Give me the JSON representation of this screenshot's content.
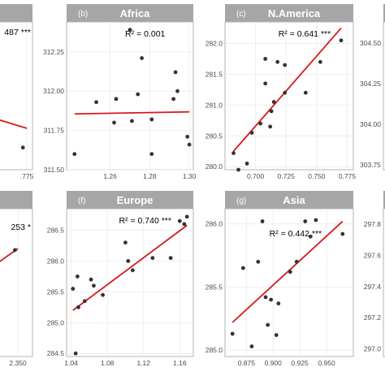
{
  "chart_data": [
    {
      "panel": "partial-top-left",
      "type": "scatter",
      "title": "",
      "annotation": "487 ***",
      "x_ticks": [
        ".775"
      ],
      "y_ticks": [],
      "xlim": [
        0.655,
        0.785
      ],
      "ylim": [
        0,
        1
      ],
      "points": [
        [
          0.72,
          0.8
        ],
        [
          0.72,
          0.7
        ],
        [
          0.768,
          0.15
        ]
      ],
      "fit_line": [
        [
          0.655,
          0.42
        ],
        [
          0.775,
          0.28
        ]
      ]
    },
    {
      "panel": "b",
      "type": "scatter",
      "title": "Africa",
      "tag": "(b)",
      "annotation": "R² = 0.001",
      "x_ticks": [
        "1.26",
        "1.28",
        "1.30"
      ],
      "y_ticks": [
        "312.25",
        "312.00",
        "311.75",
        "311.50"
      ],
      "xlim": [
        1.238,
        1.302
      ],
      "ylim": [
        311.5,
        312.44
      ],
      "points": [
        [
          1.242,
          311.6
        ],
        [
          1.253,
          311.93
        ],
        [
          1.263,
          311.95
        ],
        [
          1.262,
          311.8
        ],
        [
          1.27,
          312.39
        ],
        [
          1.274,
          311.98
        ],
        [
          1.276,
          312.21
        ],
        [
          1.271,
          311.81
        ],
        [
          1.281,
          311.82
        ],
        [
          1.281,
          311.6
        ],
        [
          1.293,
          312.12
        ],
        [
          1.292,
          311.95
        ],
        [
          1.294,
          312.0
        ],
        [
          1.299,
          311.71
        ],
        [
          1.3,
          311.66
        ]
      ],
      "fit_line": [
        [
          1.242,
          311.855
        ],
        [
          1.3,
          311.868
        ]
      ]
    },
    {
      "panel": "c",
      "type": "scatter",
      "title": "N.America",
      "tag": "(c)",
      "annotation": "R² = 0.641 ***",
      "x_ticks": [
        "0.700",
        "0.725",
        "0.750",
        "0.775"
      ],
      "y_ticks": [
        "282.0",
        "281.5",
        "281.0",
        "280.5",
        "280.0"
      ],
      "xlim": [
        0.675,
        0.78
      ],
      "ylim": [
        279.95,
        282.35
      ],
      "points": [
        [
          0.682,
          280.22
        ],
        [
          0.686,
          279.95
        ],
        [
          0.693,
          280.05
        ],
        [
          0.697,
          280.55
        ],
        [
          0.704,
          280.7
        ],
        [
          0.708,
          281.35
        ],
        [
          0.708,
          281.75
        ],
        [
          0.712,
          280.65
        ],
        [
          0.713,
          280.9
        ],
        [
          0.715,
          281.05
        ],
        [
          0.718,
          281.7
        ],
        [
          0.724,
          281.65
        ],
        [
          0.724,
          281.2
        ],
        [
          0.741,
          281.2
        ],
        [
          0.753,
          281.7
        ],
        [
          0.77,
          282.05
        ]
      ],
      "fit_line": [
        [
          0.682,
          280.25
        ],
        [
          0.77,
          282.25
        ]
      ]
    },
    {
      "panel": "partial-top-right",
      "type": "scatter",
      "title": "",
      "x_ticks": [],
      "y_ticks": [
        "304.50",
        "304.25",
        "304.00",
        "303.75"
      ],
      "ylim": [
        303.72,
        304.63
      ],
      "points": []
    },
    {
      "panel": "partial-bottom-left",
      "type": "scatter",
      "title": "",
      "annotation": "253 *",
      "x_ticks": [
        "325",
        "2.350"
      ],
      "y_ticks": [],
      "xlim": [
        2.31,
        2.36
      ],
      "ylim": [
        0,
        1
      ],
      "points": [
        [
          2.348,
          0.72
        ]
      ],
      "fit_line": [
        [
          2.31,
          0.45
        ],
        [
          2.35,
          0.73
        ]
      ]
    },
    {
      "panel": "f",
      "type": "scatter",
      "title": "Europe",
      "tag": "(f)",
      "annotation": "R² = 0.740 ***",
      "x_ticks": [
        "1.04",
        "1.08",
        "1.12",
        "1.16"
      ],
      "y_ticks": [
        "286.5",
        "286.0",
        "285.5",
        "285.0",
        "284.5"
      ],
      "xlim": [
        1.035,
        1.175
      ],
      "ylim": [
        284.45,
        286.85
      ],
      "points": [
        [
          1.042,
          285.55
        ],
        [
          1.045,
          284.5
        ],
        [
          1.047,
          285.75
        ],
        [
          1.048,
          285.25
        ],
        [
          1.055,
          285.35
        ],
        [
          1.062,
          285.7
        ],
        [
          1.065,
          285.6
        ],
        [
          1.075,
          285.45
        ],
        [
          1.1,
          286.3
        ],
        [
          1.103,
          286.0
        ],
        [
          1.108,
          285.85
        ],
        [
          1.13,
          286.05
        ],
        [
          1.15,
          286.05
        ],
        [
          1.16,
          286.65
        ],
        [
          1.165,
          286.6
        ],
        [
          1.168,
          286.72
        ]
      ],
      "fit_line": [
        [
          1.042,
          285.2
        ],
        [
          1.168,
          286.58
        ]
      ]
    },
    {
      "panel": "g",
      "type": "scatter",
      "title": "Asia",
      "tag": "(g)",
      "annotation": "R² = 0.442 ***",
      "x_ticks": [
        "0.875",
        "0.900",
        "0.925",
        "0.950"
      ],
      "y_ticks": [
        "286.0",
        "285.5",
        "285.0"
      ],
      "xlim": [
        0.855,
        0.975
      ],
      "ylim": [
        284.95,
        286.12
      ],
      "points": [
        [
          0.862,
          285.13
        ],
        [
          0.872,
          285.65
        ],
        [
          0.88,
          285.03
        ],
        [
          0.886,
          285.7
        ],
        [
          0.89,
          286.02
        ],
        [
          0.893,
          285.42
        ],
        [
          0.895,
          285.2
        ],
        [
          0.898,
          285.4
        ],
        [
          0.903,
          285.12
        ],
        [
          0.905,
          285.37
        ],
        [
          0.916,
          285.62
        ],
        [
          0.922,
          285.7
        ],
        [
          0.93,
          286.02
        ],
        [
          0.935,
          285.9
        ],
        [
          0.94,
          286.03
        ],
        [
          0.965,
          285.92
        ]
      ],
      "fit_line": [
        [
          0.862,
          285.22
        ],
        [
          0.965,
          286.02
        ]
      ]
    },
    {
      "panel": "partial-bottom-right",
      "type": "scatter",
      "title": "",
      "x_ticks": [],
      "y_ticks": [
        "297.8",
        "297.6",
        "297.4",
        "297.2",
        "297.0"
      ],
      "ylim": [
        296.95,
        297.9
      ],
      "points": []
    }
  ]
}
